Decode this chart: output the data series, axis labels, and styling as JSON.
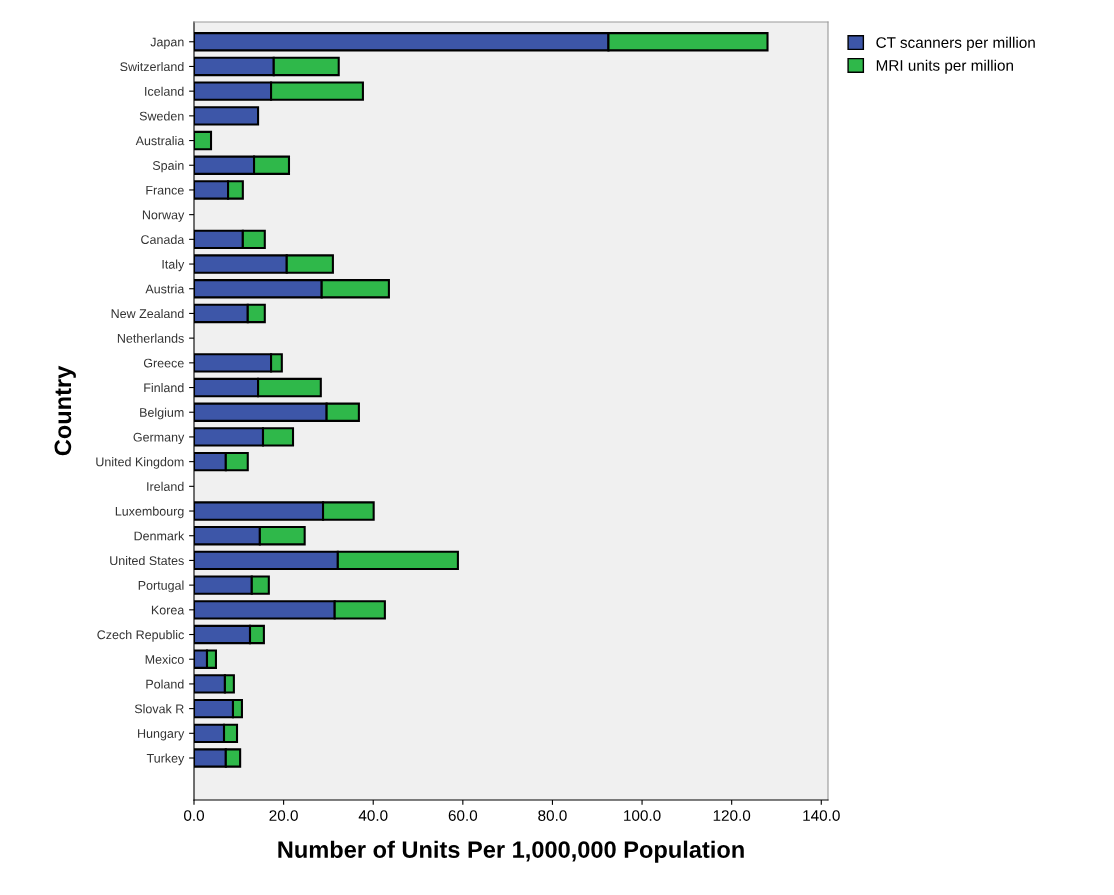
{
  "chart_data": {
    "type": "bar",
    "orientation": "horizontal",
    "stacked": true,
    "xlabel": "Number of Units Per 1,000,000 Population",
    "ylabel": "Country",
    "categories": [
      "Japan",
      "Switzerland",
      "Iceland",
      "Sweden",
      "Australia",
      "Spain",
      "France",
      "Norway",
      "Canada",
      "Italy",
      "Austria",
      "New Zealand",
      "Netherlands",
      "Greece",
      "Finland",
      "Belgium",
      "Germany",
      "United Kingdom",
      "Ireland",
      "Luxembourg",
      "Denmark",
      "United States",
      "Portugal",
      "Korea",
      "Czech Republic",
      "Mexico",
      "Poland",
      "Slovak R",
      "Hungary",
      "Turkey"
    ],
    "series": [
      {
        "name": "CT scanners per million",
        "color": "#3d56a8",
        "values": [
          92.5,
          17.8,
          17.2,
          14.3,
          null,
          13.4,
          7.6,
          null,
          10.9,
          20.7,
          28.5,
          12.0,
          null,
          17.2,
          14.3,
          29.6,
          15.4,
          7.1,
          null,
          28.8,
          14.7,
          32.1,
          12.9,
          31.4,
          12.5,
          2.9,
          6.9,
          8.7,
          6.7,
          7.1
        ]
      },
      {
        "name": "MRI units per million",
        "color": "#2fb84a",
        "values": [
          35.5,
          14.5,
          20.5,
          null,
          3.8,
          7.8,
          3.3,
          null,
          4.9,
          10.3,
          15.0,
          3.8,
          null,
          2.4,
          14.0,
          7.2,
          6.7,
          4.9,
          null,
          11.3,
          10.0,
          26.8,
          3.8,
          11.2,
          3.1,
          2.0,
          2.0,
          2.0,
          2.9,
          3.2
        ]
      }
    ],
    "xlim": [
      0,
      141.5
    ],
    "xticks": [
      {
        "value": 0,
        "label": "0.0"
      },
      {
        "value": 20,
        "label": "20.0"
      },
      {
        "value": 40,
        "label": "40.0"
      },
      {
        "value": 60,
        "label": "60.0"
      },
      {
        "value": 80,
        "label": "80.0"
      },
      {
        "value": 100,
        "label": "100.0"
      },
      {
        "value": 120,
        "label": "120.0"
      },
      {
        "value": 140,
        "label": "140.0"
      }
    ],
    "grid": false,
    "legend": "top right"
  }
}
